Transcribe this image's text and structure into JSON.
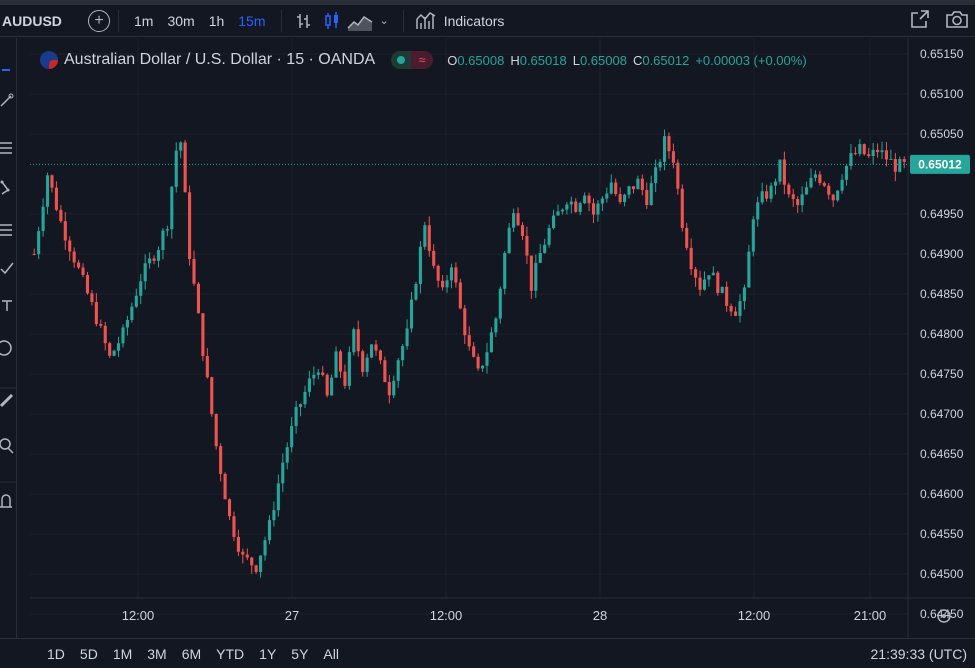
{
  "toolbar": {
    "symbol": "AUDUSD",
    "intervals": [
      "1m",
      "30m",
      "1h",
      "15m"
    ],
    "active_interval": "15m",
    "indicators_label": "Indicators"
  },
  "legend": {
    "title": "Australian Dollar / U.S. Dollar · 15 · OANDA",
    "o_key": "O",
    "o_val": "0.65008",
    "h_key": "H",
    "h_val": "0.65018",
    "l_key": "L",
    "l_val": "0.65008",
    "c_key": "C",
    "c_val": "0.65012",
    "change": "+0.00003 (+0.00%)"
  },
  "price_axis": {
    "ticks": [
      "0.65150",
      "0.65100",
      "0.65050",
      "0.64950",
      "0.64900",
      "0.64850",
      "0.64800",
      "0.64750",
      "0.64700",
      "0.64650",
      "0.64600",
      "0.64550",
      "0.64500",
      "0.64450"
    ],
    "last_price": "0.65012"
  },
  "time_axis": {
    "ticks": [
      "12:00",
      "27",
      "12:00",
      "28",
      "12:00",
      "21:00"
    ]
  },
  "bottom": {
    "ranges": [
      "1D",
      "5D",
      "1M",
      "3M",
      "6M",
      "YTD",
      "1Y",
      "5Y",
      "All"
    ],
    "clock": "21:39:33 (UTC)"
  },
  "colors": {
    "background": "#131722",
    "up": "#26a69a",
    "down": "#ef5350",
    "grid": "#1e222d",
    "accent": "#2962ff"
  },
  "chart_data": {
    "type": "candlestick",
    "ylim": [
      0.6442,
      0.6517
    ],
    "last_price": 0.65012,
    "price_path": [
      [
        0,
        0.649
      ],
      [
        3,
        0.65
      ],
      [
        6,
        0.6494
      ],
      [
        10,
        0.6488
      ],
      [
        14,
        0.6482
      ],
      [
        17,
        0.6477
      ],
      [
        20,
        0.648
      ],
      [
        24,
        0.6487
      ],
      [
        28,
        0.6491
      ],
      [
        30,
        0.6494
      ],
      [
        32,
        0.6503
      ],
      [
        33,
        0.6504
      ],
      [
        35,
        0.649
      ],
      [
        38,
        0.6478
      ],
      [
        41,
        0.6466
      ],
      [
        44,
        0.6457
      ],
      [
        47,
        0.6452
      ],
      [
        50,
        0.6451
      ],
      [
        53,
        0.6456
      ],
      [
        56,
        0.6464
      ],
      [
        59,
        0.647
      ],
      [
        62,
        0.6474
      ],
      [
        64,
        0.6476
      ],
      [
        66,
        0.6472
      ],
      [
        68,
        0.6477
      ],
      [
        70,
        0.6474
      ],
      [
        72,
        0.648
      ],
      [
        74,
        0.6476
      ],
      [
        76,
        0.6479
      ],
      [
        78,
        0.6476
      ],
      [
        80,
        0.6473
      ],
      [
        82,
        0.6477
      ],
      [
        84,
        0.648
      ],
      [
        86,
        0.6487
      ],
      [
        88,
        0.6494
      ],
      [
        90,
        0.6488
      ],
      [
        92,
        0.6485
      ],
      [
        94,
        0.6489
      ],
      [
        96,
        0.6483
      ],
      [
        98,
        0.6478
      ],
      [
        100,
        0.6475
      ],
      [
        102,
        0.6478
      ],
      [
        104,
        0.6482
      ],
      [
        106,
        0.649
      ],
      [
        108,
        0.6496
      ],
      [
        110,
        0.6493
      ],
      [
        112,
        0.6486
      ],
      [
        114,
        0.649
      ],
      [
        116,
        0.6493
      ],
      [
        118,
        0.6495
      ],
      [
        120,
        0.6497
      ],
      [
        122,
        0.6496
      ],
      [
        124,
        0.6498
      ],
      [
        126,
        0.6495
      ],
      [
        128,
        0.6497
      ],
      [
        130,
        0.6499
      ],
      [
        132,
        0.6496
      ],
      [
        134,
        0.6498
      ],
      [
        136,
        0.6499
      ],
      [
        138,
        0.6497
      ],
      [
        140,
        0.65
      ],
      [
        142,
        0.6504
      ],
      [
        144,
        0.6502
      ],
      [
        146,
        0.6494
      ],
      [
        148,
        0.6489
      ],
      [
        150,
        0.6486
      ],
      [
        152,
        0.6488
      ],
      [
        154,
        0.6486
      ],
      [
        156,
        0.6484
      ],
      [
        158,
        0.6483
      ],
      [
        160,
        0.6485
      ],
      [
        162,
        0.6495
      ],
      [
        164,
        0.6497
      ],
      [
        166,
        0.6498
      ],
      [
        168,
        0.6501
      ],
      [
        170,
        0.6497
      ],
      [
        172,
        0.6496
      ],
      [
        174,
        0.6498
      ],
      [
        176,
        0.65
      ],
      [
        178,
        0.6499
      ],
      [
        180,
        0.6497
      ],
      [
        182,
        0.65
      ],
      [
        184,
        0.6502
      ],
      [
        186,
        0.6503
      ],
      [
        188,
        0.6502
      ],
      [
        190,
        0.6503
      ],
      [
        192,
        0.6502
      ],
      [
        194,
        0.6501
      ],
      [
        196,
        0.6501
      ]
    ]
  }
}
